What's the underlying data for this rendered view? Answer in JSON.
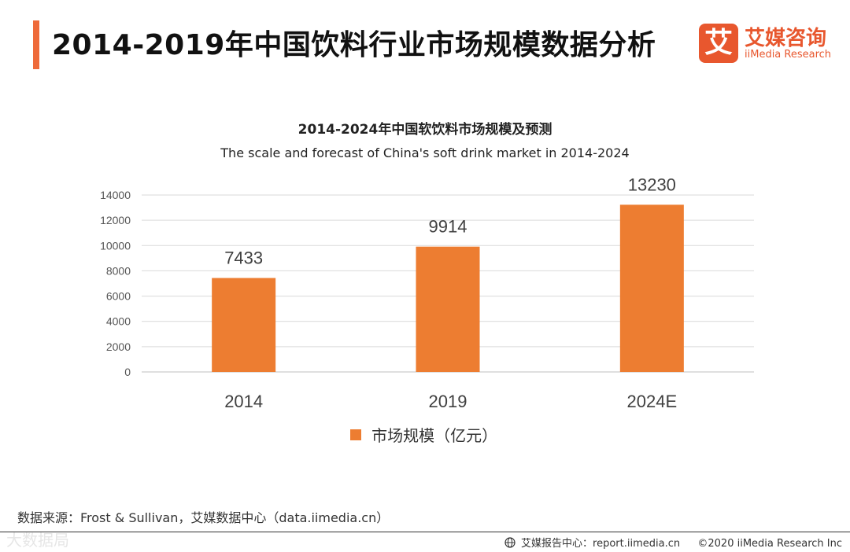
{
  "header": {
    "title": "2014-2019年中国饮料行业市场规模数据分析",
    "logo_mark": "艾",
    "logo_cn": "艾媒咨询",
    "logo_en": "iiMedia Research"
  },
  "colors": {
    "accent": "#ee6a3a",
    "bar": "#ed7d31",
    "grid": "#d9d9d9"
  },
  "chart_data": {
    "type": "bar",
    "title": "2014-2024年中国软饮料市场规模及预测",
    "subtitle": "The scale and forecast of China's soft drink market in 2014-2024",
    "categories": [
      "2014",
      "2019",
      "2024E"
    ],
    "series": [
      {
        "name": "市场规模（亿元）",
        "values": [
          7433,
          9914,
          13230
        ]
      }
    ],
    "ylim": [
      0,
      14000
    ],
    "yticks": [
      0,
      2000,
      4000,
      6000,
      8000,
      10000,
      12000,
      14000
    ],
    "grid": true,
    "legend_position": "bottom",
    "xlabel": "",
    "ylabel": ""
  },
  "footer": {
    "source": "数据来源：Frost & Sullivan，艾媒数据中心（data.iimedia.cn）",
    "watermark": "大数据局",
    "report_center": "艾媒报告中心：report.iimedia.cn",
    "copyright": "©2020  iiMedia Research  Inc"
  }
}
